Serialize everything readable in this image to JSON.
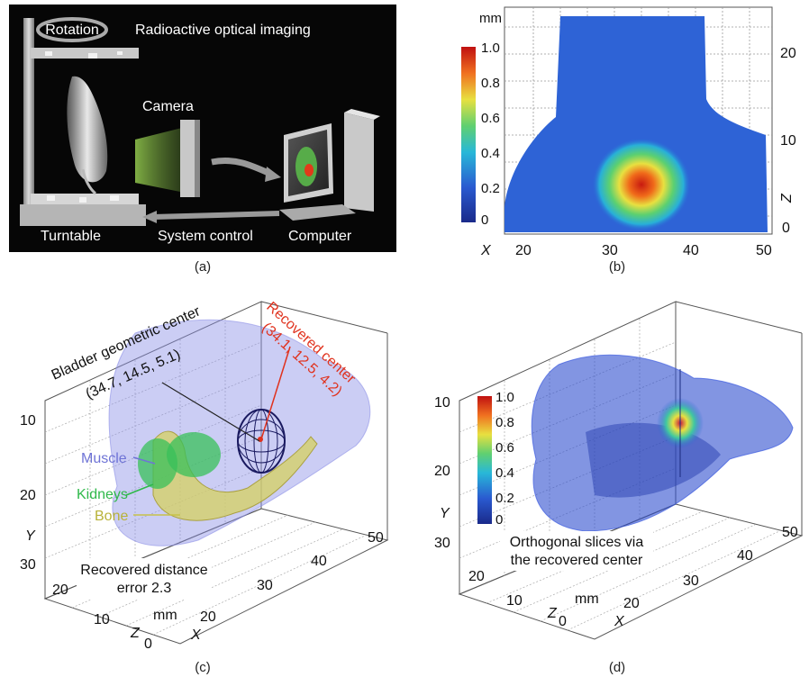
{
  "panel_a": {
    "rotation": "Rotation",
    "title": "Radioactive optical imaging",
    "camera": "Camera",
    "turntable": "Turntable",
    "system_control": "System control",
    "computer": "Computer",
    "caption": "(a)"
  },
  "panel_b": {
    "unit": "mm",
    "colorbar_ticks": [
      "1.0",
      "0.8",
      "0.6",
      "0.4",
      "0.2",
      "0"
    ],
    "x_label": "X",
    "x_ticks": [
      "20",
      "30",
      "40",
      "50"
    ],
    "z_label": "Z",
    "z_ticks": [
      "20",
      "10",
      "0"
    ],
    "caption": "(b)"
  },
  "panel_c": {
    "bladder_label": "Bladder geometric center",
    "bladder_coords": "(34.7, 14.5, 5.1)",
    "recovered_label": "Recovered center",
    "recovered_coords": "(34.1, 12.5, 4.2)",
    "muscle": "Muscle",
    "kidneys": "Kidneys",
    "bone": "Bone",
    "distance_line1": "Recovered distance",
    "distance_line2": "error 2.3",
    "y_label": "Y",
    "y_ticks": [
      "10",
      "20",
      "30"
    ],
    "z_label": "Z",
    "z_ticks": [
      "20",
      "10",
      "0"
    ],
    "x_label": "X",
    "x_ticks": [
      "20",
      "30",
      "40",
      "50"
    ],
    "unit": "mm",
    "caption": "(c)",
    "colors": {
      "muscle": "#6f74d6",
      "kidneys": "#2fb84a",
      "bone": "#c8c24a",
      "recovered": "#e0321e"
    }
  },
  "panel_d": {
    "colorbar_ticks": [
      "1.0",
      "0.8",
      "0.6",
      "0.4",
      "0.2",
      "0"
    ],
    "y_label": "Y",
    "y_ticks": [
      "10",
      "20",
      "30"
    ],
    "z_label": "Z",
    "z_ticks": [
      "20",
      "10",
      "0"
    ],
    "x_label": "X",
    "x_ticks": [
      "20",
      "30",
      "40",
      "50"
    ],
    "unit": "mm",
    "slices_line1": "Orthogonal slices via",
    "slices_line2": "the recovered center",
    "caption": "(d)"
  }
}
